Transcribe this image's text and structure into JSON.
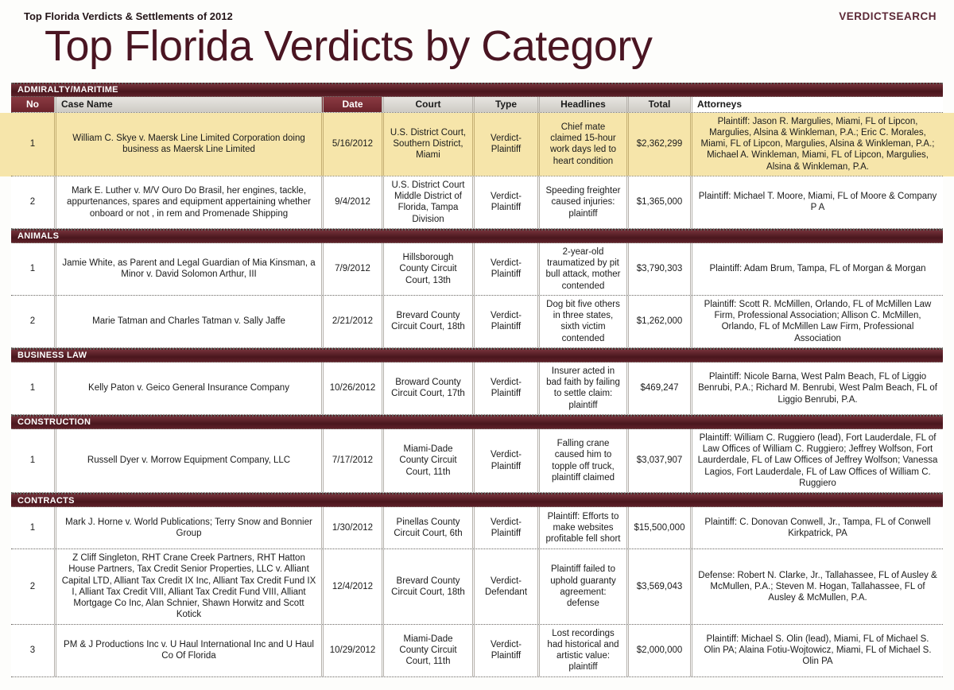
{
  "page": {
    "eyebrow": "Top Florida Verdicts & Settlements of 2012",
    "brand": "VERDICTSEARCH",
    "title": "Top Florida Verdicts by Category"
  },
  "colors": {
    "maroon_dark": "#4a161d",
    "maroon_header_cell": "#7d2f36",
    "title_maroon": "#4a1522",
    "highlight_yellow": "#f6e5aa",
    "header_gray": "#d9d6d0"
  },
  "table": {
    "headers": {
      "no": "No",
      "case": "Case Name",
      "date": "Date",
      "court": "Court",
      "type": "Type",
      "headlines": "Headlines",
      "total": "Total",
      "attorneys": "Attorneys"
    },
    "sections": [
      {
        "category": "ADMIRALTY/MARITIME",
        "rows": [
          {
            "no": "1",
            "case": "William C. Skye v. Maersk Line Limited Corporation doing business as Maersk Line Limited",
            "date": "5/16/2012",
            "court": "U.S. District Court, Southern District, Miami",
            "type": "Verdict-Plaintiff",
            "headlines": "Chief mate claimed 15-hour work days led to heart condition",
            "total": "$2,362,299",
            "attorneys": "Plaintiff: Jason R. Margulies, Miami, FL of Lipcon, Margulies, Alsina & Winkleman, P.A.; Eric C. Morales, Miami, FL of Lipcon, Margulies, Alsina & Winkleman, P.A.; Michael A. Winkleman, Miami, FL of Lipcon, Margulies, Alsina & Winkleman, P.A.",
            "highlighted": true
          },
          {
            "no": "2",
            "case": "Mark E. Luther v. M/V Ouro Do Brasil, her engines, tackle, appurtenances, spares and equipment appertaining whether onboard or not , in rem and Promenade Shipping",
            "date": "9/4/2012",
            "court": "U.S. District Court Middle District of Florida, Tampa Division",
            "type": "Verdict-Plaintiff",
            "headlines": "Speeding freighter caused injuries: plaintiff",
            "total": "$1,365,000",
            "attorneys": "Plaintiff: Michael T. Moore, Miami, FL of Moore & Company P A",
            "highlighted": false
          }
        ]
      },
      {
        "category": "ANIMALS",
        "rows": [
          {
            "no": "1",
            "case": "Jamie White, as Parent and Legal Guardian of Mia Kinsman, a Minor v. David Solomon Arthur, III",
            "date": "7/9/2012",
            "court": "Hillsborough County Circuit Court, 13th",
            "type": "Verdict-Plaintiff",
            "headlines": "2-year-old traumatized by pit bull attack, mother contended",
            "total": "$3,790,303",
            "attorneys": "Plaintiff: Adam Brum, Tampa, FL of Morgan & Morgan",
            "highlighted": false
          },
          {
            "no": "2",
            "case": "Marie Tatman and Charles Tatman v. Sally Jaffe",
            "date": "2/21/2012",
            "court": "Brevard County Circuit Court, 18th",
            "type": "Verdict-Plaintiff",
            "headlines": "Dog bit five others in three states, sixth victim contended",
            "total": "$1,262,000",
            "attorneys": "Plaintiff: Scott R. McMillen, Orlando, FL of McMillen Law Firm, Professional Association; Allison C. McMillen, Orlando, FL of McMillen Law Firm, Professional Association",
            "highlighted": false
          }
        ]
      },
      {
        "category": "BUSINESS LAW",
        "rows": [
          {
            "no": "1",
            "case": "Kelly Paton v. Geico General Insurance Company",
            "date": "10/26/2012",
            "court": "Broward County Circuit Court, 17th",
            "type": "Verdict-Plaintiff",
            "headlines": "Insurer acted in bad faith by failing to settle claim: plaintiff",
            "total": "$469,247",
            "attorneys": "Plaintiff: Nicole Barna, West Palm Beach, FL of Liggio Benrubi, P.A.; Richard M. Benrubi, West Palm Beach, FL of Liggio Benrubi, P.A.",
            "highlighted": false
          }
        ]
      },
      {
        "category": "CONSTRUCTION",
        "rows": [
          {
            "no": "1",
            "case": "Russell Dyer v. Morrow Equipment Company, LLC",
            "date": "7/17/2012",
            "court": "Miami-Dade County Circuit Court, 11th",
            "type": "Verdict-Plaintiff",
            "headlines": "Falling crane caused him to topple off truck, plaintiff claimed",
            "total": "$3,037,907",
            "attorneys": "Plaintiff: William C. Ruggiero (lead), Fort Lauderdale, FL of Law Offices of William C. Ruggiero; Jeffrey Wolfson, Fort Laurderdale, FL of Law Offices of Jeffrey Wolfson; Vanessa Lagios, Fort Lauderdale, FL of Law Offices of William C. Ruggiero",
            "highlighted": false
          }
        ]
      },
      {
        "category": "CONTRACTS",
        "rows": [
          {
            "no": "1",
            "case": "Mark J. Horne v. World Publications; Terry Snow and Bonnier Group",
            "date": "1/30/2012",
            "court": "Pinellas County Circuit Court, 6th",
            "type": "Verdict-Plaintiff",
            "headlines": "Plaintiff: Efforts to make websites profitable fell short",
            "total": "$15,500,000",
            "attorneys": "Plaintiff: C. Donovan Conwell, Jr., Tampa, FL of Conwell Kirkpatrick, PA",
            "highlighted": false
          },
          {
            "no": "2",
            "case": "Z Cliff Singleton, RHT Crane Creek Partners, RHT Hatton House Partners, Tax Credit Senior Properties, LLC v. Alliant Capital LTD, Alliant Tax Credit IX Inc, Alliant Tax Credit Fund IX I, Alliant Tax Credit VIII, Alliant Tax Credit Fund VIII, Alliant Mortgage Co Inc, Alan Schnier, Shawn Horwitz and Scott Kotick",
            "date": "12/4/2012",
            "court": "Brevard County Circuit Court, 18th",
            "type": "Verdict-Defendant",
            "headlines": "Plaintiff failed to uphold guaranty agreement: defense",
            "total": "$3,569,043",
            "attorneys": "Defense: Robert N. Clarke, Jr., Tallahassee, FL of Ausley & McMullen, P.A.; Steven M. Hogan, Tallahassee, FL of Ausley & McMullen, P.A.",
            "highlighted": false
          },
          {
            "no": "3",
            "case": "PM & J Productions Inc v. U Haul International Inc and U Haul Co Of Florida",
            "date": "10/29/2012",
            "court": "Miami-Dade County Circuit Court, 11th",
            "type": "Verdict-Plaintiff",
            "headlines": "Lost recordings had historical and artistic value: plaintiff",
            "total": "$2,000,000",
            "attorneys": "Plaintiff: Michael S. Olin (lead), Miami, FL of Michael S. Olin PA; Alaina Fotiu-Wojtowicz, Miami, FL of Michael S. Olin PA",
            "highlighted": false
          }
        ]
      }
    ]
  }
}
